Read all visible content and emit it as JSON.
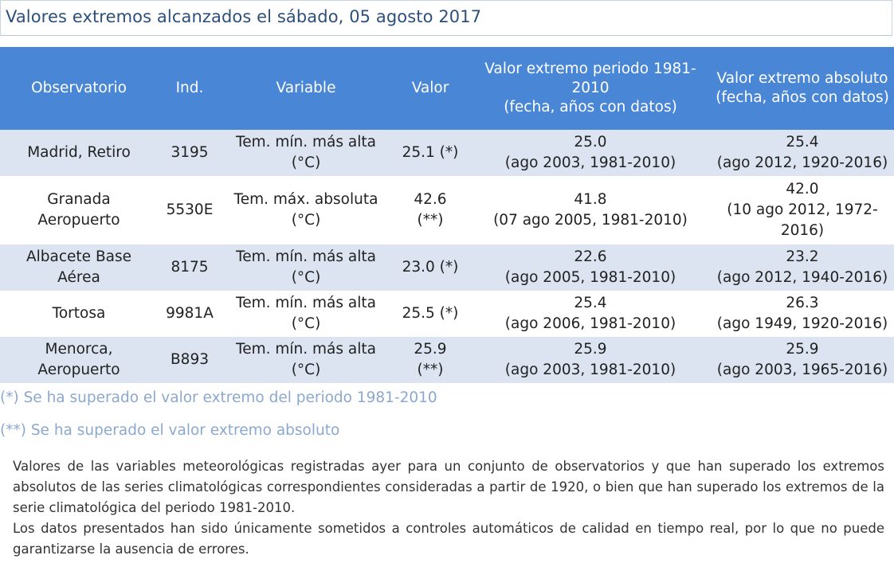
{
  "title": "Valores extremos alcanzados el sábado, 05 agosto 2017",
  "table": {
    "headers": [
      [
        "Observatorio"
      ],
      [
        "Ind."
      ],
      [
        "Variable"
      ],
      [
        "Valor"
      ],
      [
        "Valor extremo periodo 1981-",
        "2010",
        "(fecha, años con datos)"
      ],
      [
        "Valor extremo absoluto",
        "(fecha, años con datos)"
      ]
    ],
    "rows": [
      {
        "observatorio": [
          "Madrid, Retiro"
        ],
        "ind": "3195",
        "variable": [
          "Tem. mín. más alta",
          "(°C)"
        ],
        "valor": [
          "25.1 (*)"
        ],
        "extremo_periodo": [
          "25.0",
          "(ago 2003, 1981-2010)"
        ],
        "extremo_absoluto": [
          "25.4",
          "(ago 2012, 1920-2016)"
        ]
      },
      {
        "observatorio": [
          "Granada",
          "Aeropuerto"
        ],
        "ind": "5530E",
        "variable": [
          "Tem. máx. absoluta",
          "(°C)"
        ],
        "valor": [
          "42.6",
          "(**)"
        ],
        "extremo_periodo": [
          "41.8",
          "(07 ago 2005, 1981-2010)"
        ],
        "extremo_absoluto": [
          "42.0",
          "(10 ago 2012, 1972-",
          "2016)"
        ]
      },
      {
        "observatorio": [
          "Albacete Base",
          "Aérea"
        ],
        "ind": "8175",
        "variable": [
          "Tem. mín. más alta",
          "(°C)"
        ],
        "valor": [
          "23.0 (*)"
        ],
        "extremo_periodo": [
          "22.6",
          "(ago 2005, 1981-2010)"
        ],
        "extremo_absoluto": [
          "23.2",
          "(ago 2012, 1940-2016)"
        ]
      },
      {
        "observatorio": [
          "Tortosa"
        ],
        "ind": "9981A",
        "variable": [
          "Tem. mín. más alta",
          "(°C)"
        ],
        "valor": [
          "25.5 (*)"
        ],
        "extremo_periodo": [
          "25.4",
          "(ago 2006, 1981-2010)"
        ],
        "extremo_absoluto": [
          "26.3",
          "(ago 1949, 1920-2016)"
        ]
      },
      {
        "observatorio": [
          "Menorca,",
          "Aeropuerto"
        ],
        "ind": "B893",
        "variable": [
          "Tem. mín. más alta",
          "(°C)"
        ],
        "valor": [
          "25.9",
          "(**)"
        ],
        "extremo_periodo": [
          "25.9",
          "(ago 2003, 1981-2010)"
        ],
        "extremo_absoluto": [
          "25.9",
          "(ago 2003, 1965-2016)"
        ]
      }
    ]
  },
  "notes": {
    "single": "(*) Se ha superado el valor extremo del periodo 1981-2010",
    "double": "(**) Se ha superado el valor extremo absoluto"
  },
  "description": {
    "p1": "Valores de las variables meteorológicas registradas ayer para un conjunto de observatorios y que han superado los extremos absolutos de las series climatológicas correspondientes consideradas a partir de 1920, o bien que han superado los extremos de la serie climatológica del periodo 1981-2010.",
    "p2": "Los datos presentados han sido únicamente sometidos a controles automáticos de calidad en tiempo real, por lo que no puede garantizarse la ausencia de errores."
  }
}
